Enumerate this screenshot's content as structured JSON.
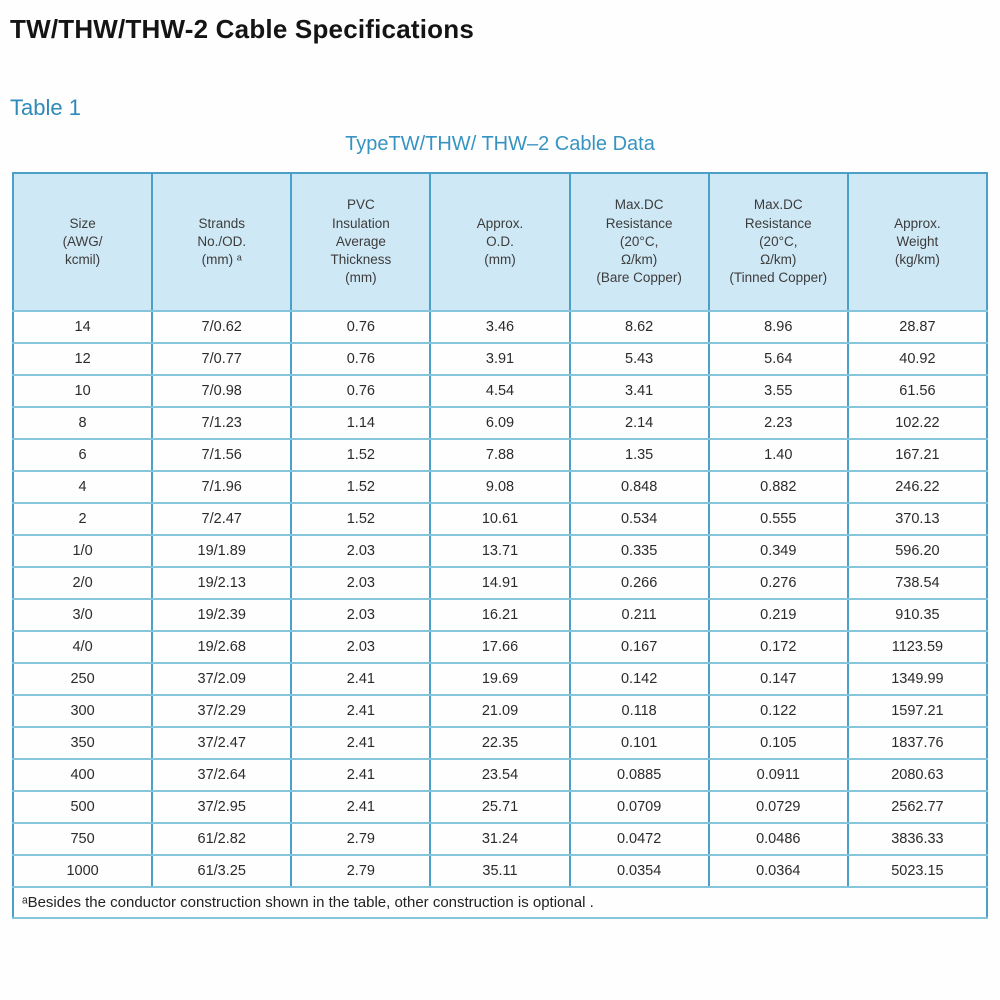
{
  "page": {
    "title": "TW/THW/THW-2 Cable Specifications",
    "table_label": "Table 1",
    "table_caption": "TypeTW/THW/ THW–2 Cable Data",
    "footnote": "ᵃBesides the conductor construction shown in the table, other construction is optional ."
  },
  "colors": {
    "accent_blue": "#2e8abb",
    "header_bg": "#cfe8f5",
    "grid_blue": "#4aa0c9",
    "row_line": "#85c6dc",
    "cell_text": "#2b2b2b"
  },
  "table": {
    "headers": [
      "Size\n(AWG/\nkcmil)",
      "Strands\nNo./OD.\n(mm) ᵃ",
      "PVC\nInsulation\nAverage\nThickness\n(mm)",
      "Approx.\nO.D.\n(mm)",
      "Max.DC\nResistance\n(20°C,\nΩ/km)\n(Bare Copper)",
      "Max.DC\nResistance\n(20°C,\nΩ/km)\n(Tinned Copper)",
      "Approx.\nWeight\n(kg/km)"
    ],
    "rows": [
      [
        "14",
        "7/0.62",
        "0.76",
        "3.46",
        "8.62",
        "8.96",
        "28.87"
      ],
      [
        "12",
        "7/0.77",
        "0.76",
        "3.91",
        "5.43",
        "5.64",
        "40.92"
      ],
      [
        "10",
        "7/0.98",
        "0.76",
        "4.54",
        "3.41",
        "3.55",
        "61.56"
      ],
      [
        "8",
        "7/1.23",
        "1.14",
        "6.09",
        "2.14",
        "2.23",
        "102.22"
      ],
      [
        "6",
        "7/1.56",
        "1.52",
        "7.88",
        "1.35",
        "1.40",
        "167.21"
      ],
      [
        "4",
        "7/1.96",
        "1.52",
        "9.08",
        "0.848",
        "0.882",
        "246.22"
      ],
      [
        "2",
        "7/2.47",
        "1.52",
        "10.61",
        "0.534",
        "0.555",
        "370.13"
      ],
      [
        "1/0",
        "19/1.89",
        "2.03",
        "13.71",
        "0.335",
        "0.349",
        "596.20"
      ],
      [
        "2/0",
        "19/2.13",
        "2.03",
        "14.91",
        "0.266",
        "0.276",
        "738.54"
      ],
      [
        "3/0",
        "19/2.39",
        "2.03",
        "16.21",
        "0.211",
        "0.219",
        "910.35"
      ],
      [
        "4/0",
        "19/2.68",
        "2.03",
        "17.66",
        "0.167",
        "0.172",
        "1123.59"
      ],
      [
        "250",
        "37/2.09",
        "2.41",
        "19.69",
        "0.142",
        "0.147",
        "1349.99"
      ],
      [
        "300",
        "37/2.29",
        "2.41",
        "21.09",
        "0.118",
        "0.122",
        "1597.21"
      ],
      [
        "350",
        "37/2.47",
        "2.41",
        "22.35",
        "0.101",
        "0.105",
        "1837.76"
      ],
      [
        "400",
        "37/2.64",
        "2.41",
        "23.54",
        "0.0885",
        "0.0911",
        "2080.63"
      ],
      [
        "500",
        "37/2.95",
        "2.41",
        "25.71",
        "0.0709",
        "0.0729",
        "2562.77"
      ],
      [
        "750",
        "61/2.82",
        "2.79",
        "31.24",
        "0.0472",
        "0.0486",
        "3836.33"
      ],
      [
        "1000",
        "61/3.25",
        "2.79",
        "35.11",
        "0.0354",
        "0.0364",
        "5023.15"
      ]
    ]
  }
}
